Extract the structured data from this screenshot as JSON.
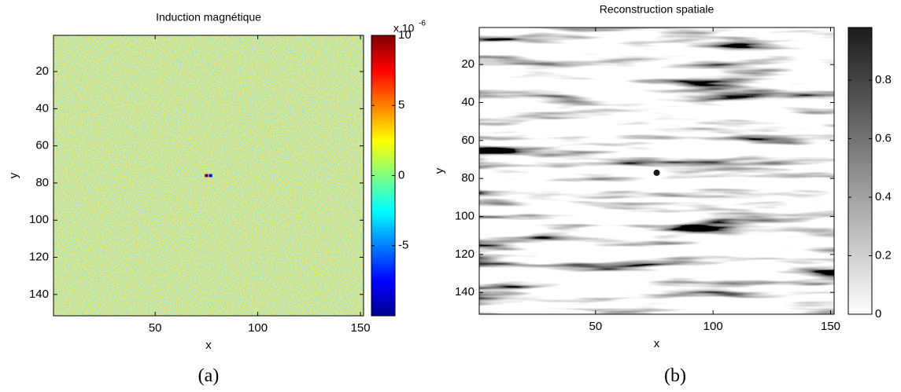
{
  "chart_data": [
    {
      "type": "heatmap",
      "title": "Induction magnétique",
      "xlabel": "x",
      "ylabel": "y",
      "caption": "(a)",
      "xlim": [
        0.5,
        151.5
      ],
      "ylim": [
        0.5,
        151.5
      ],
      "y_reversed": true,
      "xticks": [
        50,
        100,
        150
      ],
      "yticks": [
        20,
        40,
        60,
        80,
        100,
        120,
        140
      ],
      "colorbar": {
        "lim": [
          -10,
          10
        ],
        "ticks": [
          -5,
          0,
          5,
          10
        ],
        "multiplier": "x 10",
        "exponent": "-6",
        "colormap": "jet"
      },
      "points": [
        {
          "x": 75,
          "y": 76,
          "value": 10
        },
        {
          "x": 77,
          "y": 76,
          "value": -8
        }
      ]
    },
    {
      "type": "heatmap",
      "title": "Reconstruction spatiale",
      "xlabel": "x",
      "ylabel": "y",
      "caption": "(b)",
      "xlim": [
        0.5,
        151.5
      ],
      "ylim": [
        0.5,
        151.5
      ],
      "y_reversed": true,
      "xticks": [
        50,
        100,
        150
      ],
      "yticks": [
        20,
        40,
        60,
        80,
        100,
        120,
        140
      ],
      "colorbar": {
        "lim": [
          0,
          0.98
        ],
        "ticks": [
          0,
          0.2,
          0.4,
          0.6,
          0.8
        ],
        "colormap": "gray_r"
      },
      "points": [
        {
          "x": 76,
          "y": 77,
          "value": 0.98
        }
      ]
    }
  ]
}
